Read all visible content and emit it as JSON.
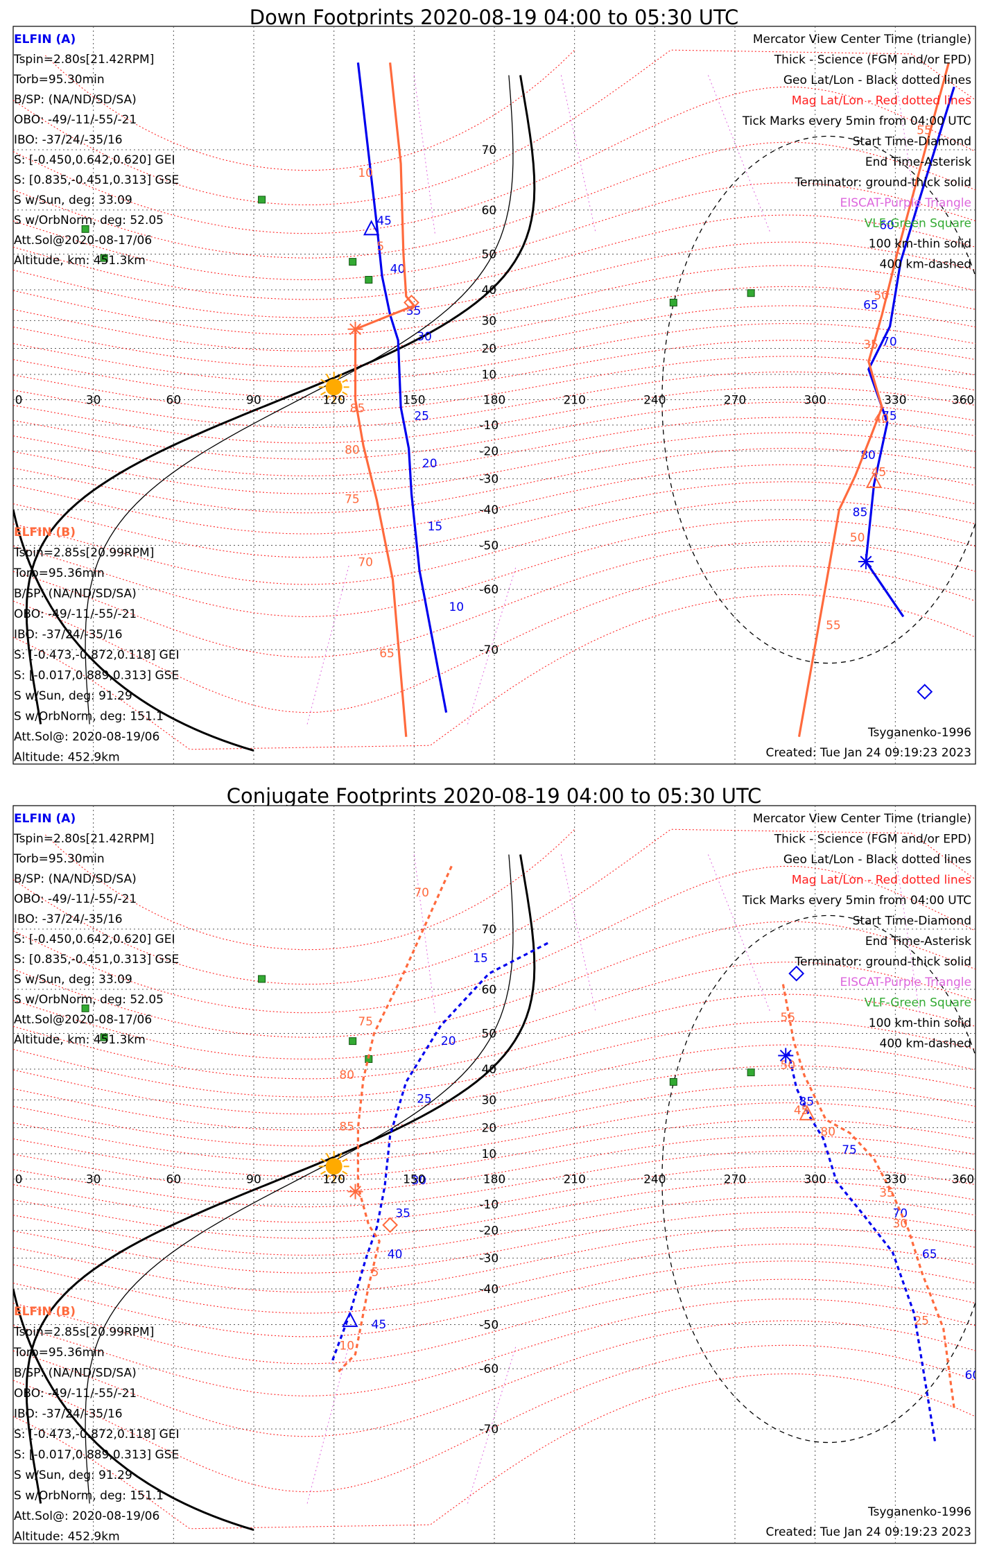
{
  "panels": [
    {
      "title": "Down Footprints 2020-08-19 04:00 to 05:30 UTC",
      "left_block_a": [
        "ELFIN (A)",
        "Tspin=2.80s[21.42RPM]",
        "Torb=95.30min",
        "B/SP: (NA/ND/SD/SA)",
        "OBO: -49/-11/-55/-21",
        "IBO: -37/24/-35/16",
        "S: [-0.450,0.642,0.620] GEI",
        "S: [0.835,-0.451,0.313] GSE",
        "S w/Sun, deg: 33.09",
        "S w/OrbNorm, deg: 52.05",
        "Att.Sol@2020-08-17/06",
        "Altitude, km: 451.3km"
      ],
      "left_block_b": [
        "ELFIN (B)",
        "Tspin=2.85s[20.99RPM]",
        "Torb=95.36min",
        "B/SP: (NA/ND/SD/SA)",
        "OBO: -49/-11/-55/-21",
        "IBO: -37/24/-35/16",
        "S: [-0.473,-0.872,0.118] GEI",
        "S: [-0.017,0.889,0.313] GSE",
        "S w/Sun, deg: 91.29",
        "S w/OrbNorm, deg: 151.1",
        "Att.Sol@: 2020-08-19/06",
        "Altitude: 452.9km"
      ],
      "legend": [
        "Mercator View Center Time (triangle)",
        "Thick - Science (FGM and/or EPD)",
        "Geo Lat/Lon - Black dotted lines",
        "Mag Lat/Lon - Red dotted lines",
        "Tick Marks every 5min from 04:00 UTC",
        "Start Time-Diamond",
        "End Time-Asterisk",
        "Terminator: ground-thick solid",
        "EISCAT-Purple Triangle",
        "VLF-Green Square",
        "100 km-thin solid",
        "400 km-dashed"
      ],
      "model": "Tsyganenko-1996",
      "created": "Created: Tue Jan 24 09:19:23 2023"
    },
    {
      "title": "Conjugate Footprints 2020-08-19 04:00 to 05:30 UTC",
      "left_block_a": [
        "ELFIN (A)",
        "Tspin=2.80s[21.42RPM]",
        "Torb=95.30min",
        "B/SP: (NA/ND/SD/SA)",
        "OBO: -49/-11/-55/-21",
        "IBO: -37/24/-35/16",
        "S: [-0.450,0.642,0.620] GEI",
        "S: [0.835,-0.451,0.313] GSE",
        "S w/Sun, deg: 33.09",
        "S w/OrbNorm, deg: 52.05",
        "Att.Sol@2020-08-17/06",
        "Altitude, km: 451.3km"
      ],
      "left_block_b": [
        "ELFIN (B)",
        "Tspin=2.85s[20.99RPM]",
        "Torb=95.36min",
        "B/SP: (NA/ND/SD/SA)",
        "OBO: -49/-11/-55/-21",
        "IBO: -37/24/-35/16",
        "S: [-0.473,-0.872,0.118] GEI",
        "S: [-0.017,0.889,0.313] GSE",
        "S w/Sun, deg: 91.29",
        "S w/OrbNorm, deg: 151.1",
        "Att.Sol@: 2020-08-19/06",
        "Altitude: 452.9km"
      ],
      "legend": [
        "Mercator View Center Time (triangle)",
        "Thick - Science (FGM and/or EPD)",
        "Geo Lat/Lon - Black dotted lines",
        "Mag Lat/Lon - Red dotted lines",
        "Tick Marks every 5min from 04:00 UTC",
        "Start Time-Diamond",
        "End Time-Asterisk",
        "Terminator: ground-thick solid",
        "EISCAT-Purple Triangle",
        "VLF-Green Square",
        "100 km-thin solid",
        "400 km-dashed"
      ],
      "model": "Tsyganenko-1996",
      "created": "Created: Tue Jan 24 09:19:23 2023"
    }
  ],
  "colors": {
    "elfin_a": "#0000ee",
    "elfin_b": "#ff6a3d",
    "mag_grid": "#ff2020",
    "geo_grid": "#555555",
    "eiscat": "#dd66dd",
    "vlf": "#33aa33",
    "sun": "#ffaa00",
    "legend_mag": "#ff2020",
    "legend_eiscat": "#dd66dd",
    "legend_vlf": "#33aa33"
  },
  "chart_data": [
    {
      "type": "map",
      "title": "Down Footprints 2020-08-19 04:00 to 05:30 UTC",
      "projection": "mercator",
      "lon_ticks": [
        0,
        30,
        60,
        90,
        120,
        150,
        180,
        210,
        240,
        270,
        300,
        330,
        360
      ],
      "lat_ticks": [
        70,
        60,
        50,
        40,
        30,
        20,
        10,
        -10,
        -20,
        -30,
        -40,
        -50,
        -60,
        -70
      ],
      "xlim": [
        0,
        360
      ],
      "ylim": [
        -75,
        75
      ],
      "series": [
        {
          "name": "ELFIN (A)",
          "points": [
            [
              129,
              79
            ],
            [
              136,
              57
            ],
            [
              138,
              44
            ],
            [
              141,
              32
            ],
            [
              144,
              23
            ],
            [
              145,
              -3
            ],
            [
              148,
              -19
            ],
            [
              149,
              -35
            ],
            [
              152,
              -56
            ],
            [
              162,
              -77
            ],
            [
              333,
              -65
            ],
            [
              319,
              -54
            ],
            [
              322,
              -32
            ],
            [
              327,
              -9
            ],
            [
              320,
              12
            ],
            [
              328,
              28
            ],
            [
              332,
              48
            ],
            [
              339,
              62
            ],
            [
              352,
              77
            ]
          ],
          "tick_labels": [
            {
              "text": "45",
              "lon": 136,
              "lat": 57
            },
            {
              "text": "40",
              "lon": 141,
              "lat": 45
            },
            {
              "text": "35",
              "lon": 147,
              "lat": 32
            },
            {
              "text": "30",
              "lon": 151,
              "lat": 23
            },
            {
              "text": "25",
              "lon": 150,
              "lat": -8
            },
            {
              "text": "20",
              "lon": 153,
              "lat": -26
            },
            {
              "text": "15",
              "lon": 155,
              "lat": -46
            },
            {
              "text": "10",
              "lon": 163,
              "lat": -64
            },
            {
              "text": "85",
              "lon": 314,
              "lat": -42
            },
            {
              "text": "80",
              "lon": 317,
              "lat": -23
            },
            {
              "text": "75",
              "lon": 325,
              "lat": -8
            },
            {
              "text": "70",
              "lon": 325,
              "lat": 21
            },
            {
              "text": "65",
              "lon": 318,
              "lat": 34
            },
            {
              "text": "60",
              "lon": 324,
              "lat": 56
            }
          ]
        },
        {
          "name": "ELFIN (B)",
          "points": [
            [
              141,
              79
            ],
            [
              145,
              68
            ],
            [
              146,
              50
            ],
            [
              147,
              38
            ],
            [
              150,
              35
            ],
            [
              128,
              27
            ],
            [
              128,
              0
            ],
            [
              131,
              -18
            ],
            [
              136,
              -37
            ],
            [
              142,
              -58
            ],
            [
              147,
              -79
            ],
            [
              294,
              -79
            ],
            [
              305,
              -56
            ],
            [
              309,
              -40
            ],
            [
              315,
              -29
            ],
            [
              321,
              -14
            ],
            [
              325,
              -3
            ],
            [
              320,
              15
            ],
            [
              325,
              32
            ],
            [
              331,
              51
            ],
            [
              350,
              79
            ]
          ],
          "tick_labels": [
            {
              "text": "10",
              "lon": 129,
              "lat": 66
            },
            {
              "text": "5",
              "lon": 136,
              "lat": 51
            },
            {
              "text": "85",
              "lon": 126,
              "lat": -5
            },
            {
              "text": "80",
              "lon": 124,
              "lat": -21
            },
            {
              "text": "75",
              "lon": 124,
              "lat": -38
            },
            {
              "text": "70",
              "lon": 129,
              "lat": -55
            },
            {
              "text": "65",
              "lon": 137,
              "lat": -71
            },
            {
              "text": "55",
              "lon": 304,
              "lat": -67
            },
            {
              "text": "50",
              "lon": 313,
              "lat": -49
            },
            {
              "text": "45",
              "lon": 321,
              "lat": -29
            },
            {
              "text": "40",
              "lon": 322,
              "lat": -9
            },
            {
              "text": "35",
              "lon": 318,
              "lat": 20
            },
            {
              "text": "50",
              "lon": 322,
              "lat": 37
            },
            {
              "text": "55",
              "lon": 338,
              "lat": 72
            }
          ]
        }
      ]
    },
    {
      "type": "map",
      "title": "Conjugate Footprints 2020-08-19 04:00 to 05:30 UTC",
      "projection": "mercator",
      "lon_ticks": [
        0,
        30,
        60,
        90,
        120,
        150,
        180,
        210,
        240,
        270,
        300,
        330,
        360
      ],
      "lat_ticks": [
        70,
        60,
        50,
        40,
        30,
        20,
        10,
        -10,
        -20,
        -30,
        -40,
        -50,
        -60,
        -70
      ],
      "xlim": [
        0,
        360
      ],
      "ylim": [
        -75,
        75
      ],
      "series": [
        {
          "name": "ELFIN (A)",
          "points": [
            [
              200,
              68
            ],
            [
              178,
              63
            ],
            [
              160,
              52
            ],
            [
              147,
              36
            ],
            [
              141,
              17
            ],
            [
              139,
              -3
            ],
            [
              136,
              -19
            ],
            [
              132,
              -30
            ],
            [
              126,
              -47
            ],
            [
              119,
              -59
            ],
            [
              290,
              45
            ],
            [
              293,
              34
            ],
            [
              298,
              24
            ],
            [
              303,
              16
            ],
            [
              308,
              -1
            ],
            [
              318,
              -14
            ],
            [
              329,
              -28
            ],
            [
              337,
              -47
            ],
            [
              345,
              -72
            ]
          ],
          "tick_labels": [
            {
              "text": "15",
              "lon": 172,
              "lat": 65
            },
            {
              "text": "20",
              "lon": 160,
              "lat": 47
            },
            {
              "text": "25",
              "lon": 151,
              "lat": 29
            },
            {
              "text": "30",
              "lon": 149,
              "lat": -2
            },
            {
              "text": "35",
              "lon": 143,
              "lat": -15
            },
            {
              "text": "40",
              "lon": 140,
              "lat": -30
            },
            {
              "text": "45",
              "lon": 134,
              "lat": -51
            },
            {
              "text": "85",
              "lon": 294,
              "lat": 28
            },
            {
              "text": "75",
              "lon": 310,
              "lat": 10
            },
            {
              "text": "70",
              "lon": 329,
              "lat": -15
            },
            {
              "text": "65",
              "lon": 340,
              "lat": -30
            },
            {
              "text": "60",
              "lon": 356,
              "lat": -62
            }
          ]
        },
        {
          "name": "ELFIN (B)",
          "points": [
            [
              164,
              77
            ],
            [
              146,
              63
            ],
            [
              135,
              50
            ],
            [
              131,
              37
            ],
            [
              129,
              20
            ],
            [
              129,
              -3
            ],
            [
              133,
              -18
            ],
            [
              137,
              -24
            ],
            [
              133,
              -39
            ],
            [
              128,
              -57
            ],
            [
              121,
              -61
            ],
            [
              288,
              61
            ],
            [
              292,
              48
            ],
            [
              296,
              38
            ],
            [
              304,
              23
            ],
            [
              313,
              18
            ],
            [
              322,
              8
            ],
            [
              329,
              -6
            ],
            [
              335,
              -20
            ],
            [
              340,
              -35
            ],
            [
              348,
              -51
            ],
            [
              352,
              -67
            ]
          ],
          "tick_labels": [
            {
              "text": "70",
              "lon": 150,
              "lat": 74
            },
            {
              "text": "75",
              "lon": 129,
              "lat": 52
            },
            {
              "text": "80",
              "lon": 122,
              "lat": 37
            },
            {
              "text": "85",
              "lon": 122,
              "lat": 19
            },
            {
              "text": "5",
              "lon": 134,
              "lat": -36
            },
            {
              "text": "10",
              "lon": 122,
              "lat": -56
            },
            {
              "text": "55",
              "lon": 287,
              "lat": 53
            },
            {
              "text": "50",
              "lon": 287,
              "lat": 40
            },
            {
              "text": "45",
              "lon": 292,
              "lat": 25
            },
            {
              "text": "80",
              "lon": 302,
              "lat": 17
            },
            {
              "text": "35",
              "lon": 324,
              "lat": -7
            },
            {
              "text": "30",
              "lon": 329,
              "lat": -19
            },
            {
              "text": "25",
              "lon": 337,
              "lat": -50
            }
          ]
        }
      ]
    }
  ]
}
